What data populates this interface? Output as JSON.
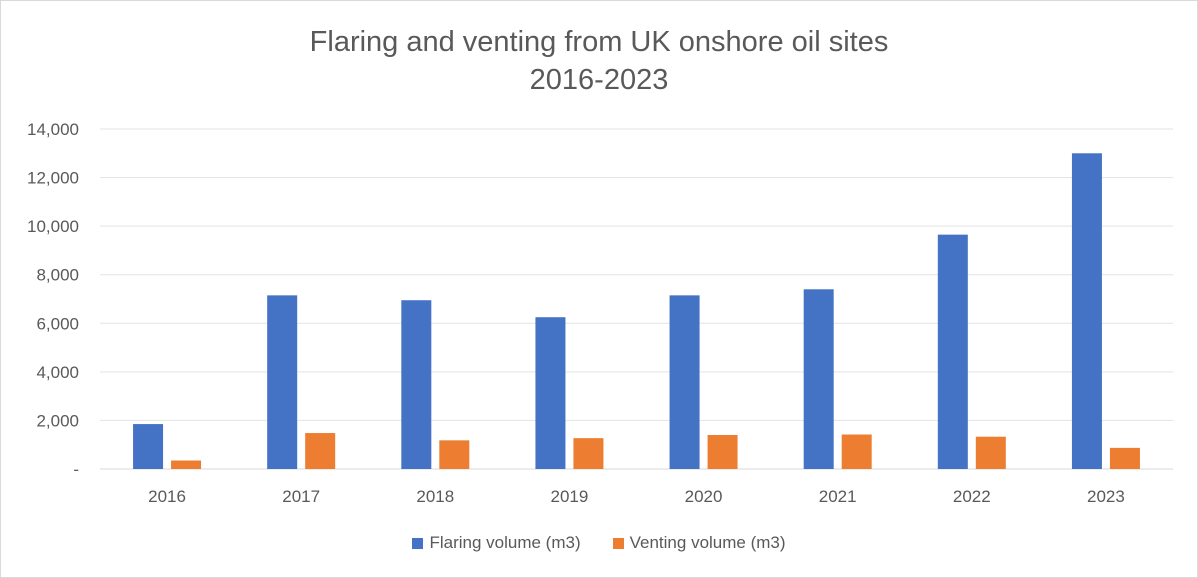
{
  "chart_data": {
    "type": "bar",
    "title_lines": [
      "Flaring and venting from UK onshore oil sites",
      "2016-2023"
    ],
    "categories": [
      "2016",
      "2017",
      "2018",
      "2019",
      "2020",
      "2021",
      "2022",
      "2023"
    ],
    "series": [
      {
        "name": "Flaring volume (m3)",
        "color": "#4472c4",
        "values": [
          1850,
          7150,
          6950,
          6250,
          7150,
          7400,
          9650,
          13000
        ]
      },
      {
        "name": "Venting volume (m3)",
        "color": "#ed7d31",
        "values": [
          350,
          1480,
          1180,
          1270,
          1400,
          1420,
          1330,
          870
        ]
      }
    ],
    "ylim": [
      0,
      14000
    ],
    "y_ticks": [
      0,
      2000,
      4000,
      6000,
      8000,
      10000,
      12000,
      14000
    ],
    "y_tick_labels": [
      "-",
      "2,000",
      "4,000",
      "6,000",
      "8,000",
      "10,000",
      "12,000",
      "14,000"
    ],
    "xlabel": "",
    "ylabel": "",
    "grid": true,
    "legend_position": "bottom"
  }
}
